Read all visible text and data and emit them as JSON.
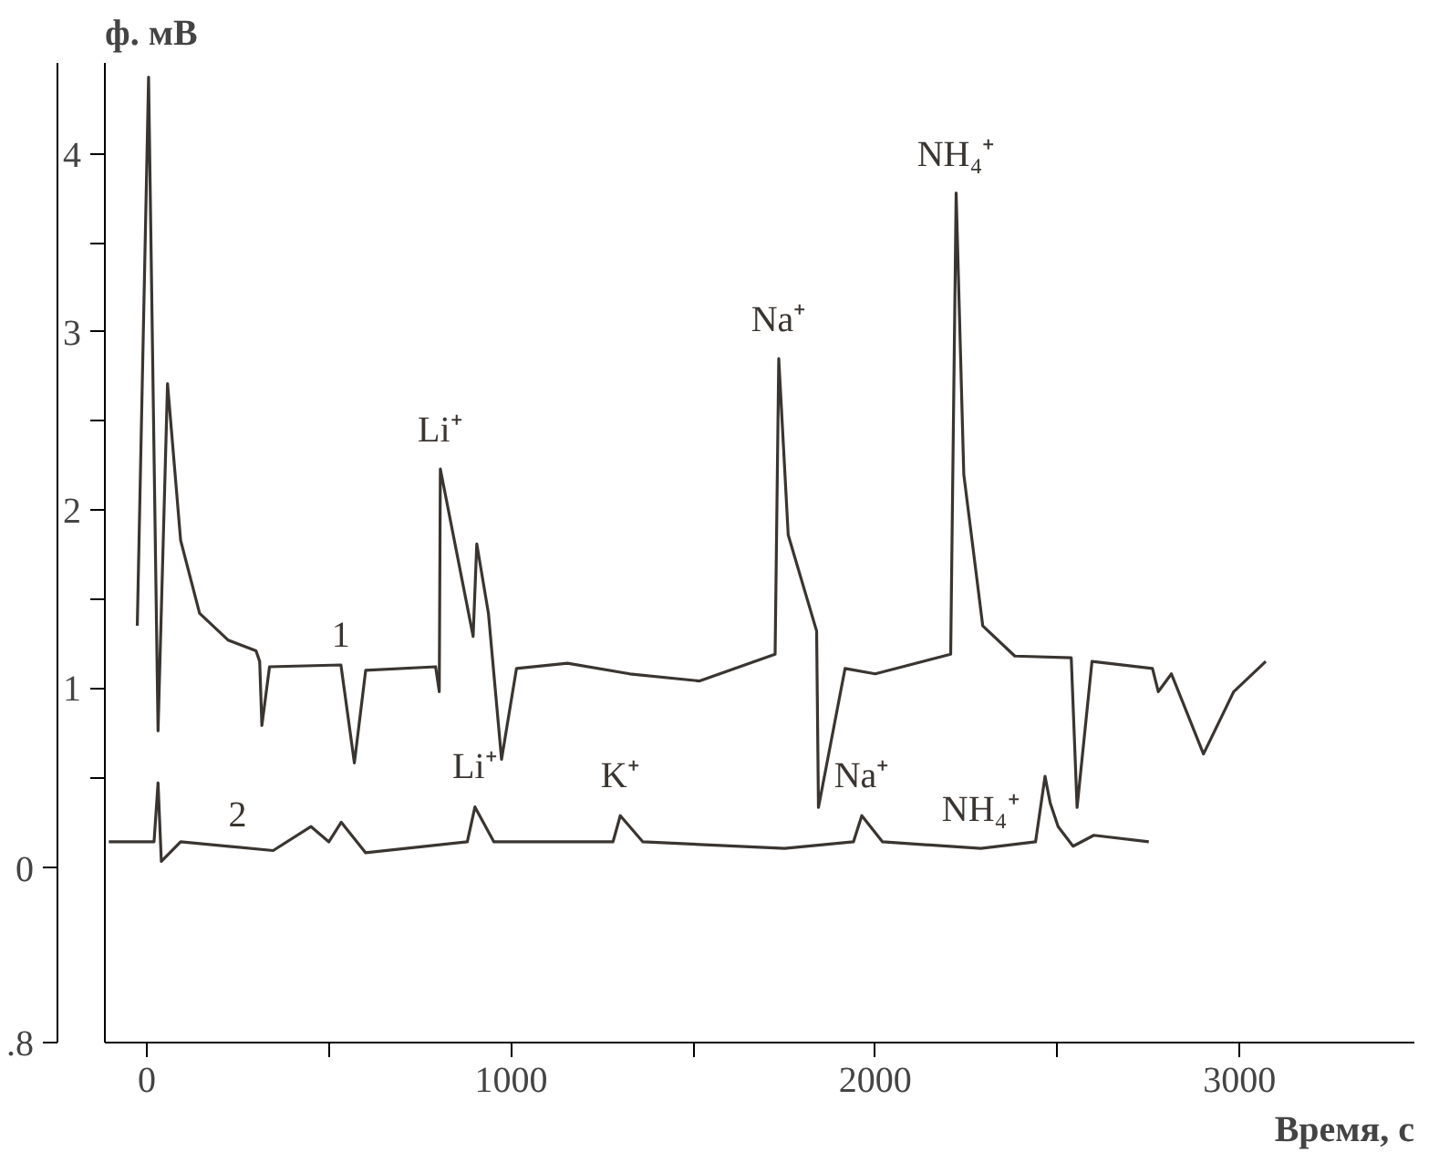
{
  "chart_data": {
    "type": "line",
    "xlabel": "Время, с",
    "ylabel": "ф. мВ",
    "xlim": [
      -115,
      3480
    ],
    "ylim": [
      -0.99,
      4.51
    ],
    "y2lim": [
      -0.8,
      3.69
    ],
    "xticks": [
      0,
      {
        "value": 500,
        "label": null
      },
      1000,
      {
        "value": 1500,
        "label": null
      },
      2000,
      {
        "value": 2500,
        "label": null
      },
      3000
    ],
    "yticks": [
      {
        "value": 0.5,
        "label": null
      },
      1,
      {
        "value": 1.5,
        "label": null
      },
      2,
      {
        "value": 2.5,
        "label": null
      },
      3,
      {
        "value": 3.5,
        "label": null
      },
      4
    ],
    "y2ticks": [
      0,
      {
        "value": -0.8,
        "label": ".8"
      }
    ],
    "grid": false,
    "marker": "none",
    "line_style": "solid",
    "series": [
      {
        "color": "#3a3530",
        "x": [
          -26,
          5,
          31,
          57,
          93,
          145,
          223,
          300,
          310,
          316,
          337,
          533,
          570,
          601,
          793,
          803,
          806,
          896,
          906,
          938,
          974,
          1015,
          1155,
          1326,
          1518,
          1725,
          1735,
          1761,
          1839,
          1844,
          1917,
          2000,
          2207,
          2222,
          2243,
          2295,
          2383,
          2538,
          2554,
          2595,
          2761,
          2777,
          2813,
          2901,
          2984,
          3072
        ],
        "values": [
          1.35,
          4.43,
          0.76,
          2.71,
          1.83,
          1.42,
          1.27,
          1.21,
          1.15,
          0.79,
          1.12,
          1.13,
          0.58,
          1.1,
          1.12,
          0.98,
          2.23,
          1.29,
          1.81,
          1.42,
          0.6,
          1.11,
          1.14,
          1.08,
          1.04,
          1.19,
          2.85,
          1.86,
          1.32,
          0.33,
          1.11,
          1.08,
          1.19,
          3.78,
          2.2,
          1.35,
          1.18,
          1.17,
          0.33,
          1.15,
          1.11,
          0.98,
          1.08,
          0.63,
          0.98,
          1.15
        ]
      },
      {
        "color": "#3a3530",
        "axis": "y2",
        "x": [
          -104,
          20,
          31,
          40,
          93,
          347,
          451,
          500,
          534,
          601,
          880,
          901,
          953,
          1280,
          1300,
          1362,
          1751,
          1940,
          1963,
          2020,
          2290,
          2440,
          2466,
          2480,
          2502,
          2543,
          2600,
          2751
        ],
        "values": [
          0.12,
          0.12,
          0.39,
          0.03,
          0.12,
          0.08,
          0.19,
          0.12,
          0.21,
          0.07,
          0.12,
          0.28,
          0.12,
          0.12,
          0.24,
          0.12,
          0.09,
          0.12,
          0.24,
          0.12,
          0.09,
          0.12,
          0.42,
          0.3,
          0.19,
          0.1,
          0.15,
          0.12
        ]
      }
    ],
    "annotations": [
      {
        "text": "1",
        "x": 533,
        "y": 1.13
      },
      {
        "text": "2",
        "x": 249,
        "y": 0.12
      },
      {
        "text": "Li⁺",
        "x": 806,
        "y": 2.23
      },
      {
        "text": "Na⁺",
        "x": 1735,
        "y": 2.85
      },
      {
        "text": "NH₄⁺",
        "x": 2222,
        "y": 3.78
      },
      {
        "text": "Li⁺",
        "x": 901,
        "y": 0.34
      },
      {
        "text": "K⁺",
        "x": 1300,
        "y": 0.29
      },
      {
        "text": "Na⁺",
        "x": 1963,
        "y": 0.29
      },
      {
        "text": "NH₄⁺",
        "x": 2290,
        "y": 0.1
      }
    ]
  }
}
